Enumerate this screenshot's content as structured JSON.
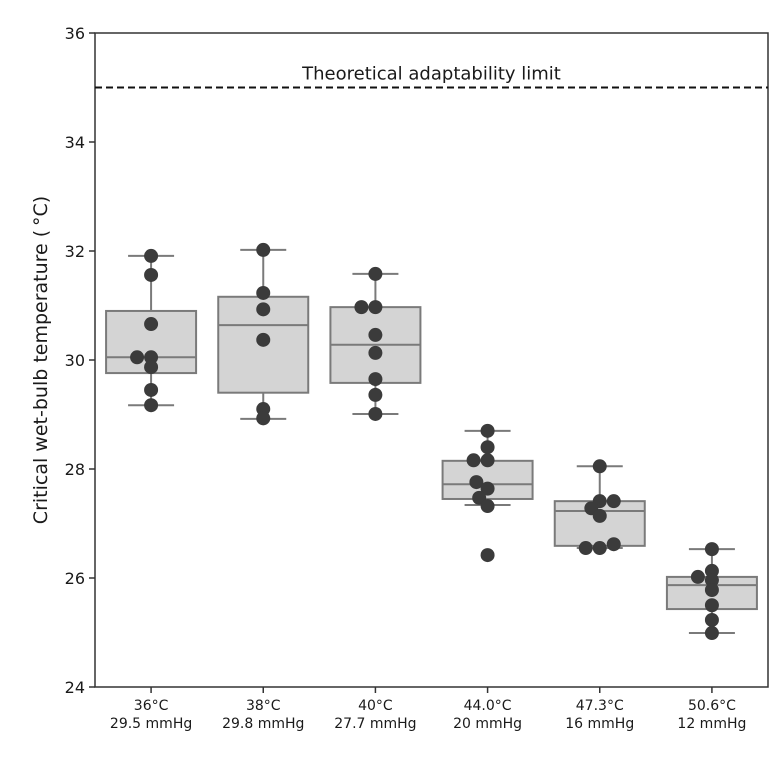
{
  "chart_data": {
    "type": "box",
    "title": "",
    "xlabel": "",
    "ylabel": "Critical wet-bulb temperature ( °C)",
    "ylim": [
      24,
      36
    ],
    "yticks": [
      24,
      26,
      28,
      30,
      32,
      34,
      36
    ],
    "grid": false,
    "legend": null,
    "categories": [
      {
        "line1": "36°C",
        "line2": "29.5 mmHg"
      },
      {
        "line1": "38°C",
        "line2": "29.8 mmHg"
      },
      {
        "line1": "40°C",
        "line2": "27.7 mmHg"
      },
      {
        "line1": "44.0°C",
        "line2": "20 mmHg"
      },
      {
        "line1": "47.3°C",
        "line2": "16 mmHg"
      },
      {
        "line1": "50.6°C",
        "line2": "12 mmHg"
      }
    ],
    "boxes": [
      {
        "whislo": 29.17,
        "q1": 29.76,
        "med": 30.05,
        "q3": 30.9,
        "whishi": 31.91
      },
      {
        "whislo": 28.92,
        "q1": 29.4,
        "med": 30.64,
        "q3": 31.16,
        "whishi": 32.02
      },
      {
        "whislo": 29.01,
        "q1": 29.58,
        "med": 30.28,
        "q3": 30.97,
        "whishi": 31.58
      },
      {
        "whislo": 27.34,
        "q1": 27.45,
        "med": 27.72,
        "q3": 28.15,
        "whishi": 28.7
      },
      {
        "whislo": 26.55,
        "q1": 26.59,
        "med": 27.23,
        "q3": 27.41,
        "whishi": 28.05
      },
      {
        "whislo": 24.99,
        "q1": 25.43,
        "med": 25.87,
        "q3": 26.02,
        "whishi": 26.53
      }
    ],
    "points": [
      [
        31.91,
        31.56,
        30.66,
        30.05,
        30.05,
        29.87,
        29.45,
        29.17
      ],
      [
        32.02,
        31.23,
        30.93,
        30.37,
        29.1,
        28.93
      ],
      [
        31.58,
        30.97,
        30.97,
        30.46,
        30.13,
        29.65,
        29.36,
        29.01
      ],
      [
        28.7,
        28.4,
        28.16,
        28.16,
        27.76,
        27.64,
        27.47,
        27.32,
        26.42
      ],
      [
        28.05,
        27.41,
        27.41,
        27.28,
        27.14,
        26.62,
        26.55,
        26.55
      ],
      [
        26.53,
        26.13,
        26.02,
        25.96,
        25.78,
        25.5,
        25.23,
        24.99
      ]
    ],
    "point_jitter": [
      [
        0,
        0,
        0,
        -1,
        0,
        0,
        0,
        0
      ],
      [
        0,
        0,
        0,
        0,
        0,
        0
      ],
      [
        0,
        -1,
        0,
        0,
        0,
        0,
        0,
        0
      ],
      [
        0,
        0,
        -1,
        0,
        -0.8,
        0,
        -0.6,
        0,
        0
      ],
      [
        0,
        0,
        1,
        -0.6,
        0,
        1,
        -1,
        0
      ],
      [
        0,
        0,
        -1,
        0,
        0,
        0,
        0,
        0
      ]
    ],
    "reference_line": {
      "y": 35,
      "style": "dashed",
      "label": "Theoretical adaptability limit"
    },
    "colors": {
      "box_fill": "#d4d4d4",
      "box_edge": "#7a7a7a",
      "point": "#3b3b3b",
      "reference_line": "#111111",
      "axis": "#333333"
    }
  }
}
